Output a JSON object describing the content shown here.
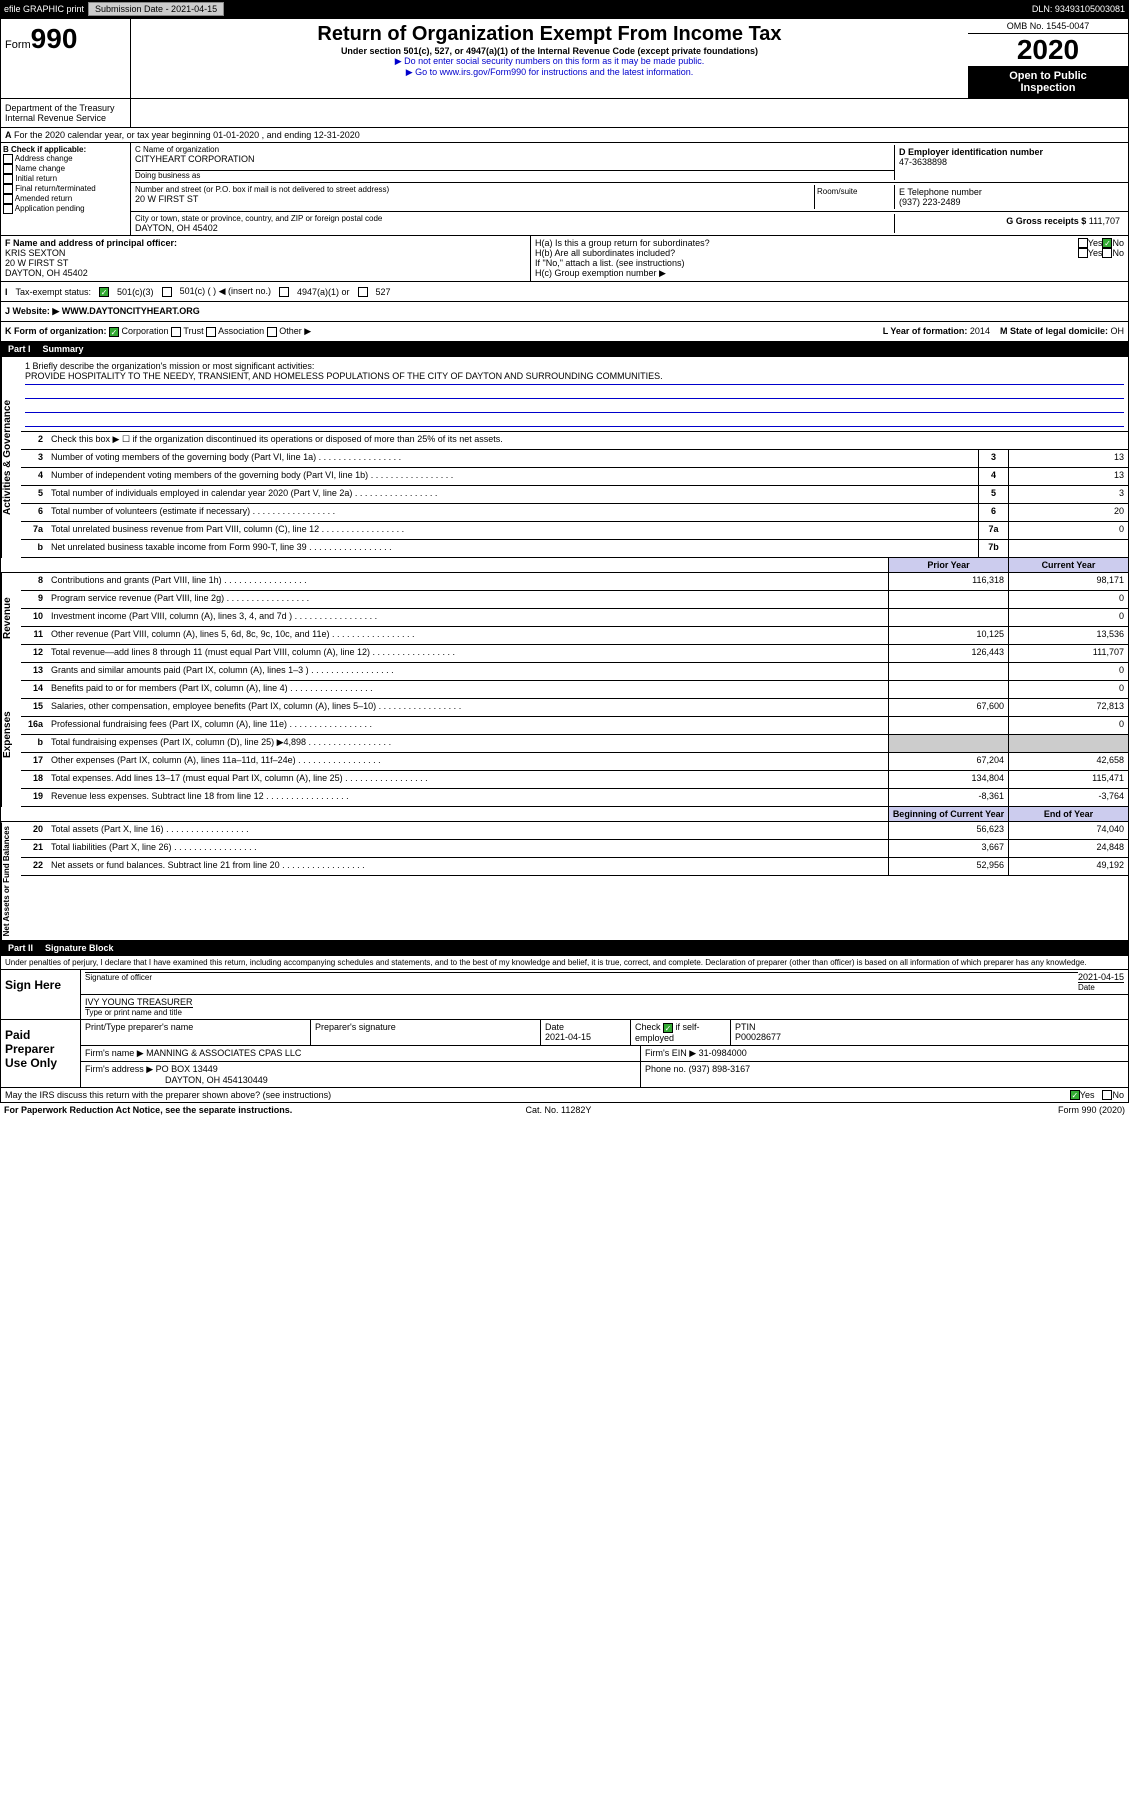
{
  "top": {
    "efile": "efile GRAPHIC print",
    "submission": "Submission Date - 2021-04-15",
    "dln": "DLN: 93493105003081"
  },
  "header": {
    "form_prefix": "Form",
    "form_no": "990",
    "title": "Return of Organization Exempt From Income Tax",
    "subtitle": "Under section 501(c), 527, or 4947(a)(1) of the Internal Revenue Code (except private foundations)",
    "note1": "▶ Do not enter social security numbers on this form as it may be made public.",
    "note2": "▶ Go to www.irs.gov/Form990 for instructions and the latest information.",
    "omb": "OMB No. 1545-0047",
    "year": "2020",
    "inspection1": "Open to Public",
    "inspection2": "Inspection",
    "dept1": "Department of the Treasury",
    "dept2": "Internal Revenue Service"
  },
  "A": "For the 2020 calendar year, or tax year beginning 01-01-2020 , and ending 12-31-2020",
  "B": {
    "label": "B Check if applicable:",
    "opts": [
      "Address change",
      "Name change",
      "Initial return",
      "Final return/terminated",
      "Amended return",
      "Application pending"
    ]
  },
  "C": {
    "name_label": "C Name of organization",
    "name": "CITYHEART CORPORATION",
    "dba_label": "Doing business as",
    "addr_label": "Number and street (or P.O. box if mail is not delivered to street address)",
    "room_label": "Room/suite",
    "addr": "20 W FIRST ST",
    "city_label": "City or town, state or province, country, and ZIP or foreign postal code",
    "city": "DAYTON, OH 45402"
  },
  "D": {
    "label": "D Employer identification number",
    "val": "47-3638898"
  },
  "E": {
    "label": "E Telephone number",
    "val": "(937) 223-2489"
  },
  "G": {
    "label": "G Gross receipts $",
    "val": "111,707"
  },
  "F": {
    "label": "F Name and address of principal officer:",
    "name": "KRIS SEXTON",
    "addr1": "20 W FIRST ST",
    "addr2": "DAYTON, OH 45402"
  },
  "H": {
    "a": "H(a) Is this a group return for subordinates?",
    "b": "H(b) Are all subordinates included?",
    "b_note": "If \"No,\" attach a list. (see instructions)",
    "c": "H(c) Group exemption number ▶",
    "yes": "Yes",
    "no": "No"
  },
  "I": {
    "label": "Tax-exempt status:",
    "o1": "501(c)(3)",
    "o2": "501(c) ( ) ◀ (insert no.)",
    "o3": "4947(a)(1) or",
    "o4": "527"
  },
  "J": {
    "label": "J Website: ▶",
    "val": "WWW.DAYTONCITYHEART.ORG"
  },
  "K": {
    "label": "K Form of organization:",
    "o1": "Corporation",
    "o2": "Trust",
    "o3": "Association",
    "o4": "Other ▶"
  },
  "L": {
    "label": "L Year of formation:",
    "val": "2014"
  },
  "M": {
    "label": "M State of legal domicile:",
    "val": "OH"
  },
  "partI": {
    "part": "Part I",
    "title": "Summary"
  },
  "mission": {
    "q": "1 Briefly describe the organization's mission or most significant activities:",
    "txt": "PROVIDE HOSPITALITY TO THE NEEDY, TRANSIENT, AND HOMELESS POPULATIONS OF THE CITY OF DAYTON AND SURROUNDING COMMUNITIES."
  },
  "sideLabels": {
    "gov": "Activities & Governance",
    "rev": "Revenue",
    "exp": "Expenses",
    "net": "Net Assets or Fund Balances"
  },
  "l2": "Check this box ▶ ☐ if the organization discontinued its operations or disposed of more than 25% of its net assets.",
  "lines_gov": [
    {
      "n": "3",
      "d": "Number of voting members of the governing body (Part VI, line 1a)",
      "b": "3",
      "v": "13"
    },
    {
      "n": "4",
      "d": "Number of independent voting members of the governing body (Part VI, line 1b)",
      "b": "4",
      "v": "13"
    },
    {
      "n": "5",
      "d": "Total number of individuals employed in calendar year 2020 (Part V, line 2a)",
      "b": "5",
      "v": "3"
    },
    {
      "n": "6",
      "d": "Total number of volunteers (estimate if necessary)",
      "b": "6",
      "v": "20"
    },
    {
      "n": "7a",
      "d": "Total unrelated business revenue from Part VIII, column (C), line 12",
      "b": "7a",
      "v": "0"
    },
    {
      "n": "b",
      "d": "Net unrelated business taxable income from Form 990-T, line 39",
      "b": "7b",
      "v": ""
    }
  ],
  "col_hdr": {
    "prior": "Prior Year",
    "current": "Current Year"
  },
  "lines_rev": [
    {
      "n": "8",
      "d": "Contributions and grants (Part VIII, line 1h)",
      "p": "116,318",
      "c": "98,171"
    },
    {
      "n": "9",
      "d": "Program service revenue (Part VIII, line 2g)",
      "p": "",
      "c": "0"
    },
    {
      "n": "10",
      "d": "Investment income (Part VIII, column (A), lines 3, 4, and 7d )",
      "p": "",
      "c": "0"
    },
    {
      "n": "11",
      "d": "Other revenue (Part VIII, column (A), lines 5, 6d, 8c, 9c, 10c, and 11e)",
      "p": "10,125",
      "c": "13,536"
    },
    {
      "n": "12",
      "d": "Total revenue—add lines 8 through 11 (must equal Part VIII, column (A), line 12)",
      "p": "126,443",
      "c": "111,707"
    }
  ],
  "lines_exp": [
    {
      "n": "13",
      "d": "Grants and similar amounts paid (Part IX, column (A), lines 1–3 )",
      "p": "",
      "c": "0"
    },
    {
      "n": "14",
      "d": "Benefits paid to or for members (Part IX, column (A), line 4)",
      "p": "",
      "c": "0"
    },
    {
      "n": "15",
      "d": "Salaries, other compensation, employee benefits (Part IX, column (A), lines 5–10)",
      "p": "67,600",
      "c": "72,813"
    },
    {
      "n": "16a",
      "d": "Professional fundraising fees (Part IX, column (A), line 11e)",
      "p": "",
      "c": "0"
    },
    {
      "n": "b",
      "d": "Total fundraising expenses (Part IX, column (D), line 25) ▶4,898",
      "p": "gray",
      "c": "gray"
    },
    {
      "n": "17",
      "d": "Other expenses (Part IX, column (A), lines 11a–11d, 11f–24e)",
      "p": "67,204",
      "c": "42,658"
    },
    {
      "n": "18",
      "d": "Total expenses. Add lines 13–17 (must equal Part IX, column (A), line 25)",
      "p": "134,804",
      "c": "115,471"
    },
    {
      "n": "19",
      "d": "Revenue less expenses. Subtract line 18 from line 12",
      "p": "-8,361",
      "c": "-3,764"
    }
  ],
  "col_hdr2": {
    "prior": "Beginning of Current Year",
    "current": "End of Year"
  },
  "lines_net": [
    {
      "n": "20",
      "d": "Total assets (Part X, line 16)",
      "p": "56,623",
      "c": "74,040"
    },
    {
      "n": "21",
      "d": "Total liabilities (Part X, line 26)",
      "p": "3,667",
      "c": "24,848"
    },
    {
      "n": "22",
      "d": "Net assets or fund balances. Subtract line 21 from line 20",
      "p": "52,956",
      "c": "49,192"
    }
  ],
  "partII": {
    "part": "Part II",
    "title": "Signature Block"
  },
  "decl": "Under penalties of perjury, I declare that I have examined this return, including accompanying schedules and statements, and to the best of my knowledge and belief, it is true, correct, and complete. Declaration of preparer (other than officer) is based on all information of which preparer has any knowledge.",
  "sign": {
    "here": "Sign Here",
    "sig_label": "Signature of officer",
    "date_label": "Date",
    "date": "2021-04-15",
    "name": "IVY YOUNG TREASURER",
    "name_label": "Type or print name and title"
  },
  "prep": {
    "label": "Paid Preparer Use Only",
    "h1": "Print/Type preparer's name",
    "h2": "Preparer's signature",
    "h3": "Date",
    "date": "2021-04-15",
    "h4_a": "Check",
    "h4_b": "if self-employed",
    "h5": "PTIN",
    "ptin": "P00028677",
    "firm_label": "Firm's name ▶",
    "firm": "MANNING & ASSOCIATES CPAS LLC",
    "ein_label": "Firm's EIN ▶",
    "ein": "31-0984000",
    "addr_label": "Firm's address ▶",
    "addr1": "PO BOX 13449",
    "addr2": "DAYTON, OH 454130449",
    "phone_label": "Phone no.",
    "phone": "(937) 898-3167"
  },
  "discuss": {
    "q": "May the IRS discuss this return with the preparer shown above? (see instructions)",
    "yes": "Yes",
    "no": "No"
  },
  "footer": {
    "l": "For Paperwork Reduction Act Notice, see the separate instructions.",
    "c": "Cat. No. 11282Y",
    "r": "Form 990 (2020)"
  }
}
